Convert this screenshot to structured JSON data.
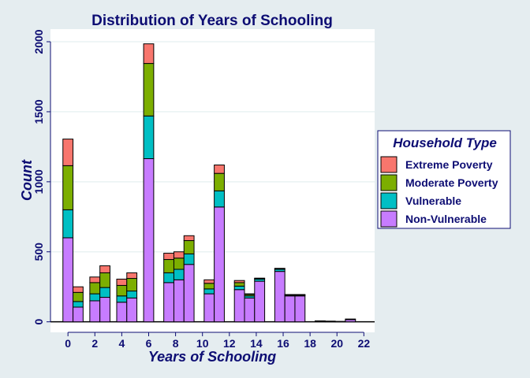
{
  "chart_data": {
    "type": "bar",
    "stacked": true,
    "title": "Distribution of Years of Schooling",
    "xlabel": "Years of Schooling",
    "ylabel": "Count",
    "xlim": [
      -1.3,
      22.8
    ],
    "ylim": [
      -75,
      2090
    ],
    "xticks": [
      "0",
      "2",
      "4",
      "6",
      "8",
      "10",
      "12",
      "14",
      "16",
      "18",
      "20",
      "22"
    ],
    "yticks": [
      "0",
      "500",
      "1000",
      "1500",
      "2000"
    ],
    "grid": true,
    "legend": {
      "title": "Household Type",
      "placement": "right",
      "entries": [
        "Extreme Poverty",
        "Moderate Poverty",
        "Vulnerable",
        "Non-Vulnerable"
      ]
    },
    "colors": {
      "Extreme Poverty": "#f8766d",
      "Moderate Poverty": "#7cae00",
      "Vulnerable": "#00bfc4",
      "Non-Vulnerable": "#c77cff",
      "background": "#e5edf0",
      "panel": "#ffffff",
      "gridline": "#eaf2f3",
      "text": "#0d0d73"
    },
    "x": [
      0,
      0.75,
      2,
      2.75,
      4,
      4.75,
      6,
      7.5,
      8.25,
      9,
      10.5,
      11.25,
      12.75,
      13.5,
      14.25,
      15.75,
      16.5,
      17.25,
      18.75,
      19.5,
      20.25,
      21
    ],
    "bar_width": 0.75,
    "series": [
      {
        "name": "Non-Vulnerable",
        "values": [
          600,
          105,
          150,
          175,
          140,
          170,
          1165,
          280,
          300,
          410,
          200,
          820,
          230,
          170,
          290,
          360,
          185,
          185,
          5,
          5,
          3,
          15
        ]
      },
      {
        "name": "Vulnerable",
        "values": [
          200,
          40,
          50,
          70,
          45,
          50,
          305,
          70,
          75,
          75,
          35,
          115,
          25,
          15,
          15,
          15,
          5,
          5,
          0,
          0,
          0,
          5
        ]
      },
      {
        "name": "Moderate Poverty",
        "values": [
          315,
          65,
          80,
          105,
          75,
          90,
          375,
          95,
          80,
          95,
          40,
          125,
          25,
          10,
          5,
          5,
          3,
          3,
          2,
          0,
          0,
          0
        ]
      },
      {
        "name": "Extreme Poverty",
        "values": [
          190,
          40,
          40,
          50,
          45,
          40,
          140,
          45,
          45,
          35,
          25,
          60,
          15,
          5,
          2,
          2,
          2,
          2,
          0,
          0,
          0,
          0
        ]
      }
    ]
  }
}
